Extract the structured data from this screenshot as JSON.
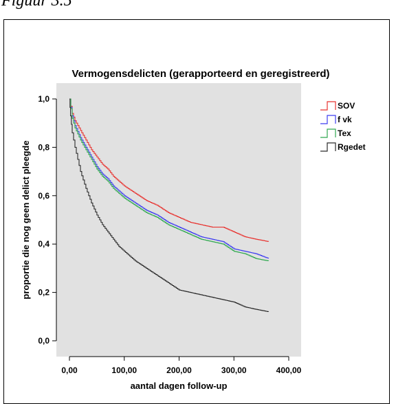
{
  "caption": "Figuur 3.5",
  "chart_data": {
    "type": "line",
    "title": "Vermogensdelicten (gerapporteerd en geregistreerd)",
    "xlabel": "aantal dagen follow-up",
    "ylabel": "proportie die nog geen delict pleegde",
    "xlim": [
      0,
      400
    ],
    "ylim": [
      0,
      1
    ],
    "x_ticks": [
      0,
      100,
      200,
      300,
      400
    ],
    "x_tick_labels": [
      "0,00",
      "100,00",
      "200,00",
      "300,00",
      "400,00"
    ],
    "y_ticks": [
      0,
      0.2,
      0.4,
      0.6,
      0.8,
      1.0
    ],
    "y_tick_labels": [
      "0,0",
      "0,2",
      "0,4",
      "0,6",
      "0,8",
      "1,0"
    ],
    "grid": false,
    "legend_position": "right",
    "series": [
      {
        "name": "SOV",
        "color": "#e8322f",
        "x": [
          0,
          5,
          10,
          20,
          30,
          40,
          50,
          60,
          70,
          80,
          90,
          100,
          120,
          140,
          160,
          180,
          200,
          220,
          240,
          260,
          280,
          300,
          320,
          340,
          363
        ],
        "y": [
          1.0,
          0.94,
          0.91,
          0.87,
          0.83,
          0.79,
          0.76,
          0.73,
          0.71,
          0.68,
          0.66,
          0.64,
          0.61,
          0.58,
          0.56,
          0.53,
          0.51,
          0.49,
          0.48,
          0.47,
          0.47,
          0.45,
          0.43,
          0.42,
          0.41
        ]
      },
      {
        "name": "f vk",
        "color": "#3c3cf0",
        "x": [
          0,
          5,
          10,
          20,
          30,
          40,
          50,
          60,
          70,
          80,
          90,
          100,
          120,
          140,
          160,
          180,
          200,
          220,
          240,
          260,
          280,
          300,
          320,
          340,
          363
        ],
        "y": [
          1.0,
          0.93,
          0.89,
          0.84,
          0.8,
          0.76,
          0.72,
          0.69,
          0.67,
          0.64,
          0.62,
          0.6,
          0.57,
          0.54,
          0.52,
          0.49,
          0.47,
          0.45,
          0.43,
          0.42,
          0.41,
          0.38,
          0.37,
          0.36,
          0.34
        ]
      },
      {
        "name": "Tex",
        "color": "#2fa84f",
        "x": [
          0,
          5,
          10,
          20,
          30,
          40,
          50,
          60,
          70,
          80,
          90,
          100,
          120,
          140,
          160,
          180,
          200,
          220,
          240,
          260,
          280,
          300,
          320,
          340,
          363
        ],
        "y": [
          1.0,
          0.92,
          0.88,
          0.83,
          0.79,
          0.75,
          0.71,
          0.68,
          0.66,
          0.63,
          0.61,
          0.59,
          0.56,
          0.53,
          0.51,
          0.48,
          0.46,
          0.44,
          0.42,
          0.41,
          0.4,
          0.37,
          0.36,
          0.34,
          0.33
        ]
      },
      {
        "name": "Rgedet",
        "color": "#2a2a2a",
        "x": [
          0,
          2,
          5,
          10,
          15,
          20,
          30,
          40,
          50,
          60,
          70,
          80,
          90,
          100,
          110,
          120,
          140,
          160,
          180,
          200,
          220,
          240,
          260,
          280,
          300,
          320,
          340,
          363
        ],
        "y": [
          1.0,
          0.93,
          0.86,
          0.8,
          0.75,
          0.7,
          0.63,
          0.57,
          0.52,
          0.48,
          0.45,
          0.42,
          0.39,
          0.37,
          0.35,
          0.33,
          0.3,
          0.27,
          0.24,
          0.21,
          0.2,
          0.19,
          0.18,
          0.17,
          0.16,
          0.14,
          0.13,
          0.12
        ]
      }
    ]
  }
}
